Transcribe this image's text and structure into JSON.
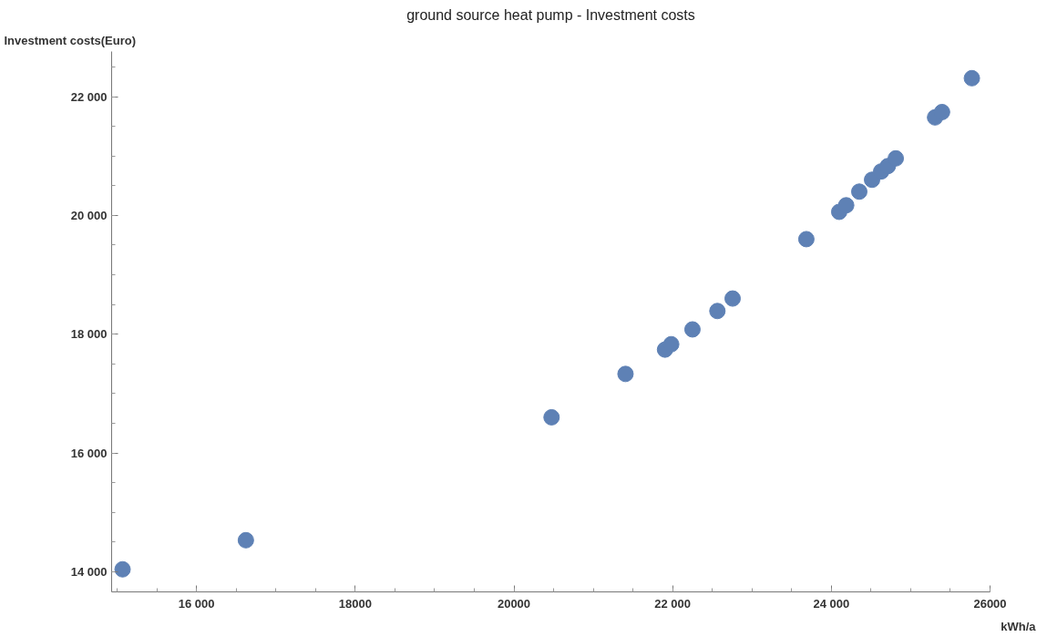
{
  "chart_data": {
    "type": "scatter",
    "title": "ground source heat pump - Investment costs",
    "xlabel": "kWh/a",
    "ylabel": "Investment costs(Euro)",
    "x": [
      15068,
      16622,
      20474,
      21406,
      21904,
      21982,
      22250,
      22564,
      22756,
      23685,
      24099,
      24187,
      24352,
      24513,
      24628,
      24712,
      24812,
      25307,
      25395,
      25771
    ],
    "series": [
      {
        "color": "#5e81b5",
        "values": [
          14040,
          14530,
          16600,
          17330,
          17740,
          17830,
          18080,
          18390,
          18600,
          19600,
          20060,
          20170,
          20400,
          20600,
          20740,
          20830,
          20960,
          21650,
          21740,
          22310
        ]
      }
    ],
    "xlim": [
      14930,
      26000
    ],
    "ylim": [
      13660,
      22760
    ],
    "xticks": [
      {
        "value": 16000,
        "label": "16 000"
      },
      18000,
      20000,
      {
        "value": 22000,
        "label": "22 000"
      },
      {
        "value": 24000,
        "label": "24 000"
      },
      26000
    ],
    "yticks": [
      {
        "value": 14000,
        "label": "14 000"
      },
      {
        "value": 16000,
        "label": "16 000"
      },
      {
        "value": 18000,
        "label": "18 000"
      },
      {
        "value": 20000,
        "label": "20 000"
      },
      {
        "value": 22000,
        "label": "22 000"
      }
    ],
    "grid": false,
    "marker": "circle"
  }
}
